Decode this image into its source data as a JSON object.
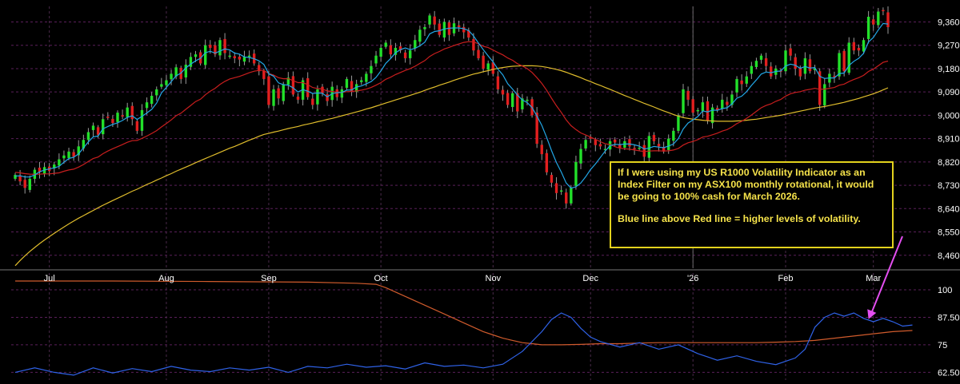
{
  "chart_data": [
    {
      "type": "candlestick",
      "panel": "price",
      "title": "",
      "xlabel": "",
      "ylabel": "",
      "ylim": [
        8410,
        9420
      ],
      "y_ticks": [
        "9,360",
        "9,270",
        "9,180",
        "9,090",
        "9,000",
        "8,910",
        "8,820",
        "8,730",
        "8,640",
        "8,550",
        "8,460"
      ],
      "y_tick_values": [
        9360,
        9270,
        9180,
        9090,
        9000,
        8910,
        8820,
        8730,
        8640,
        8550,
        8460
      ],
      "x_ticks": [
        "Jul",
        "Aug",
        "Sep",
        "Oct",
        "Nov",
        "Dec",
        "'26",
        "Feb",
        "Mar"
      ],
      "x_tick_index": [
        7,
        31,
        52,
        75,
        98,
        118,
        139,
        158,
        176
      ],
      "grid": true,
      "colors": {
        "up": "#22e02a",
        "down": "#e21f1f",
        "ma_fast": "#22a7e6",
        "ma_mid": "#c81e1e",
        "ma_slow": "#e0bd2c"
      },
      "closes": [
        8770,
        8745,
        8720,
        8755,
        8790,
        8780,
        8800,
        8785,
        8810,
        8830,
        8845,
        8860,
        8840,
        8880,
        8905,
        8935,
        8960,
        8925,
        8985,
        8990,
        8970,
        9010,
        8995,
        9030,
        8985,
        8940,
        9020,
        9050,
        9075,
        9100,
        9120,
        9135,
        9160,
        9185,
        9140,
        9195,
        9225,
        9235,
        9200,
        9270,
        9260,
        9235,
        9290,
        9240,
        9230,
        9220,
        9215,
        9225,
        9230,
        9200,
        9170,
        9140,
        9040,
        9100,
        9065,
        9120,
        9145,
        9080,
        9060,
        9135,
        9070,
        9040,
        9100,
        9085,
        9055,
        9110,
        9070,
        9100,
        9140,
        9090,
        9120,
        9135,
        9160,
        9190,
        9230,
        9260,
        9280,
        9235,
        9260,
        9250,
        9220,
        9250,
        9290,
        9330,
        9340,
        9385,
        9350,
        9310,
        9360,
        9310,
        9355,
        9340,
        9320,
        9300,
        9250,
        9220,
        9180,
        9200,
        9160,
        9100,
        9080,
        9040,
        9085,
        9015,
        9065,
        9060,
        9000,
        8890,
        8850,
        8780,
        8740,
        8700,
        8710,
        8660,
        8720,
        8820,
        8870,
        8905,
        8910,
        8885,
        8880,
        8870,
        8900,
        8895,
        8875,
        8900,
        8880,
        8870,
        8875,
        8840,
        8920,
        8900,
        8880,
        8860,
        8910,
        8940,
        9000,
        9100,
        9060,
        9010,
        9020,
        9050,
        8980,
        9030,
        9020,
        9060,
        9040,
        9080,
        9140,
        9120,
        9150,
        9190,
        9210,
        9230,
        9190,
        9150,
        9180,
        9170,
        9250,
        9230,
        9180,
        9150,
        9220,
        9170,
        9180,
        9040,
        9120,
        9160,
        9150,
        9240,
        9170,
        9280,
        9250,
        9250,
        9290,
        9380,
        9350,
        9400,
        9405,
        9340
      ],
      "ma_fast": [
        8765,
        8767,
        8762,
        8762,
        8770,
        8782,
        8789,
        8793,
        8797,
        8803,
        8819,
        8833,
        8838,
        8851,
        8874,
        8897,
        8917,
        8920,
        8948,
        8957,
        8965,
        8971,
        8980,
        8992,
        8998,
        8984,
        8996,
        9009,
        9023,
        9047,
        9086,
        9107,
        9130,
        9152,
        9163,
        9183,
        9197,
        9210,
        9220,
        9241,
        9247,
        9240,
        9248,
        9256,
        9252,
        9240,
        9236,
        9225,
        9223,
        9218,
        9210,
        9196,
        9160,
        9151,
        9125,
        9118,
        9116,
        9106,
        9090,
        9099,
        9093,
        9084,
        9086,
        9085,
        9071,
        9083,
        9087,
        9088,
        9097,
        9098,
        9109,
        9113,
        9121,
        9130,
        9146,
        9171,
        9200,
        9219,
        9241,
        9253,
        9260,
        9253,
        9258,
        9268,
        9282,
        9314,
        9323,
        9326,
        9333,
        9336,
        9337,
        9337,
        9334,
        9327,
        9306,
        9279,
        9253,
        9229,
        9206,
        9178,
        9156,
        9122,
        9101,
        9078,
        9059,
        9049,
        9030,
        8997,
        8961,
        8914,
        8864,
        8818,
        8781,
        8739,
        8719,
        8724,
        8739,
        8763,
        8791,
        8812,
        8837,
        8862,
        8883,
        8888,
        8887,
        8889,
        8889,
        8886,
        8881,
        8870,
        8873,
        8880,
        8877,
        8875,
        8881,
        8889,
        8910,
        8947,
        8970,
        8982,
        8995,
        9017,
        9013,
        9020,
        9019,
        9026,
        9029,
        9044,
        9066,
        9074,
        9091,
        9115,
        9136,
        9159,
        9167,
        9164,
        9169,
        9171,
        9190,
        9197,
        9193,
        9181,
        9188,
        9182,
        9184,
        9150,
        9142,
        9144,
        9144,
        9161,
        9163,
        9192,
        9208,
        9220,
        9239,
        9283,
        9300,
        9329,
        9354,
        9352
      ],
      "ma_mid": [
        8780,
        8778,
        8775,
        8773,
        8772,
        8773,
        8774,
        8774,
        8776,
        8778,
        8784,
        8789,
        8792,
        8800,
        8810,
        8822,
        8833,
        8839,
        8852,
        8862,
        8871,
        8879,
        8887,
        8896,
        8902,
        8903,
        8911,
        8920,
        8930,
        8941,
        8955,
        8968,
        8982,
        8998,
        9008,
        9023,
        9038,
        9053,
        9062,
        9079,
        9093,
        9104,
        9119,
        9131,
        9140,
        9145,
        9150,
        9157,
        9164,
        9170,
        9173,
        9173,
        9161,
        9155,
        9145,
        9141,
        9141,
        9134,
        9126,
        9126,
        9118,
        9107,
        9103,
        9101,
        9094,
        9092,
        9089,
        9088,
        9091,
        9092,
        9094,
        9097,
        9101,
        9107,
        9116,
        9126,
        9139,
        9147,
        9157,
        9165,
        9173,
        9180,
        9189,
        9200,
        9211,
        9227,
        9238,
        9246,
        9256,
        9262,
        9269,
        9275,
        9281,
        9284,
        9283,
        9276,
        9266,
        9261,
        9252,
        9242,
        9233,
        9221,
        9212,
        9199,
        9190,
        9180,
        9165,
        9145,
        9123,
        9096,
        9066,
        9037,
        9011,
        8982,
        8960,
        8945,
        8932,
        8924,
        8916,
        8907,
        8898,
        8890,
        8887,
        8879,
        8873,
        8871,
        8869,
        8866,
        8863,
        8860,
        8862,
        8863,
        8863,
        8862,
        8863,
        8866,
        8872,
        8885,
        8894,
        8899,
        8906,
        8916,
        8919,
        8925,
        8931,
        8939,
        8945,
        8955,
        8968,
        8977,
        8988,
        9001,
        9015,
        9029,
        9038,
        9044,
        9054,
        9061,
        9074,
        9083,
        9088,
        9091,
        9097,
        9100,
        9104,
        9100,
        9101,
        9104,
        9107,
        9116,
        9120,
        9130,
        9138,
        9145,
        9154,
        9169,
        9178,
        9191,
        9204,
        9209
      ],
      "ma_slow": [
        8420,
        8440,
        8458,
        8475,
        8490,
        8505,
        8519,
        8532,
        8545,
        8557,
        8569,
        8581,
        8592,
        8603,
        8613,
        8623,
        8633,
        8643,
        8653,
        8662,
        8671,
        8680,
        8689,
        8698,
        8707,
        8715,
        8724,
        8733,
        8741,
        8750,
        8758,
        8767,
        8775,
        8784,
        8792,
        8800,
        8808,
        8817,
        8825,
        8833,
        8841,
        8849,
        8857,
        8865,
        8873,
        8880,
        8888,
        8896,
        8904,
        8911,
        8919,
        8926,
        8930,
        8935,
        8939,
        8944,
        8949,
        8953,
        8957,
        8962,
        8966,
        8970,
        8975,
        8979,
        8984,
        8988,
        8993,
        8998,
        9003,
        9008,
        9013,
        9018,
        9024,
        9029,
        9035,
        9041,
        9047,
        9053,
        9059,
        9065,
        9071,
        9077,
        9083,
        9089,
        9096,
        9103,
        9109,
        9116,
        9122,
        9128,
        9135,
        9141,
        9147,
        9153,
        9159,
        9163,
        9168,
        9172,
        9177,
        9181,
        9184,
        9187,
        9189,
        9190,
        9191,
        9191,
        9191,
        9190,
        9188,
        9185,
        9181,
        9177,
        9172,
        9166,
        9159,
        9152,
        9145,
        9137,
        9130,
        9122,
        9115,
        9107,
        9100,
        9092,
        9084,
        9076,
        9069,
        9061,
        9054,
        9046,
        9039,
        9032,
        9024,
        9017,
        9010,
        9003,
        8997,
        8991,
        8988,
        8985,
        8983,
        8981,
        8979,
        8978,
        8977,
        8977,
        8977,
        8977,
        8978,
        8979,
        8981,
        8983,
        8985,
        8988,
        8991,
        8994,
        8997,
        9000,
        9004,
        9008,
        9012,
        9016,
        9020,
        9024,
        9028,
        9031,
        9034,
        9038,
        9042,
        9046,
        9050,
        9055,
        9060,
        9065,
        9071,
        9077,
        9083,
        9090,
        9098,
        9106
      ]
    },
    {
      "type": "line",
      "panel": "indicator",
      "title": "",
      "xlabel": "",
      "ylabel": "",
      "ylim": [
        59,
        104
      ],
      "y_ticks": [
        "100",
        "87.50",
        "75",
        "62.50"
      ],
      "y_tick_values": [
        100,
        87.5,
        75,
        62.5
      ],
      "grid": true,
      "series": [
        {
          "color": "#2f62e8",
          "x": [
            0,
            4,
            8,
            12,
            16,
            20,
            24,
            28,
            32,
            36,
            40,
            44,
            48,
            52,
            56,
            60,
            64,
            68,
            72,
            76,
            80,
            84,
            88,
            92,
            96,
            100,
            104,
            108,
            110,
            112,
            114,
            116,
            118,
            120,
            124,
            128,
            132,
            136,
            140,
            144,
            148,
            152,
            156,
            160,
            162,
            164,
            166,
            168,
            170,
            172,
            174,
            176,
            178,
            180,
            182,
            184
          ],
          "y": [
            62.5,
            64.5,
            62.5,
            61.2,
            64.5,
            62.2,
            64.2,
            62.8,
            65.2,
            63.5,
            62.8,
            64.5,
            63.5,
            64.8,
            62.5,
            65.2,
            64.5,
            66.2,
            64.8,
            65.5,
            64.0,
            66.8,
            65.2,
            65.8,
            64.5,
            66.2,
            72.0,
            81.0,
            86.5,
            89.5,
            87.5,
            82.5,
            78.5,
            76.5,
            74.0,
            76.0,
            73.0,
            75.0,
            71.0,
            68.0,
            70.0,
            67.5,
            66.0,
            69.0,
            73.0,
            83.0,
            87.5,
            89.5,
            88.0,
            89.5,
            87.0,
            85.5,
            87.0,
            85.5,
            83.5,
            84.0
          ]
        },
        {
          "color": "#d05b2c",
          "x": [
            0,
            20,
            40,
            60,
            70,
            74,
            76,
            78,
            80,
            82,
            84,
            86,
            88,
            90,
            92,
            94,
            96,
            98,
            100,
            102,
            104,
            106,
            108,
            112,
            116,
            120,
            124,
            128,
            132,
            136,
            140,
            144,
            148,
            152,
            156,
            160,
            164,
            168,
            172,
            176,
            180,
            184
          ],
          "y": [
            104,
            104,
            103.8,
            103.5,
            103,
            102.5,
            101,
            99,
            97,
            95,
            93,
            91,
            89,
            87,
            85,
            83,
            81,
            79.5,
            78,
            77,
            76,
            75.5,
            75,
            75,
            75.2,
            75.5,
            75.5,
            75.8,
            76,
            76,
            76,
            76,
            76,
            76,
            76.2,
            76.5,
            77,
            78,
            79,
            80,
            81,
            81.5
          ]
        }
      ],
      "annotation_arrow_color": "#e34ef0"
    }
  ],
  "annotation": {
    "line1": "If I were using my US R1000 Volatility Indicator as an",
    "line2": "Index Filter on my ASX100 monthly rotational, it would",
    "line3": "be going to 100% cash for March 2026.",
    "line4": "Blue line above Red line = higher levels of volatility."
  }
}
